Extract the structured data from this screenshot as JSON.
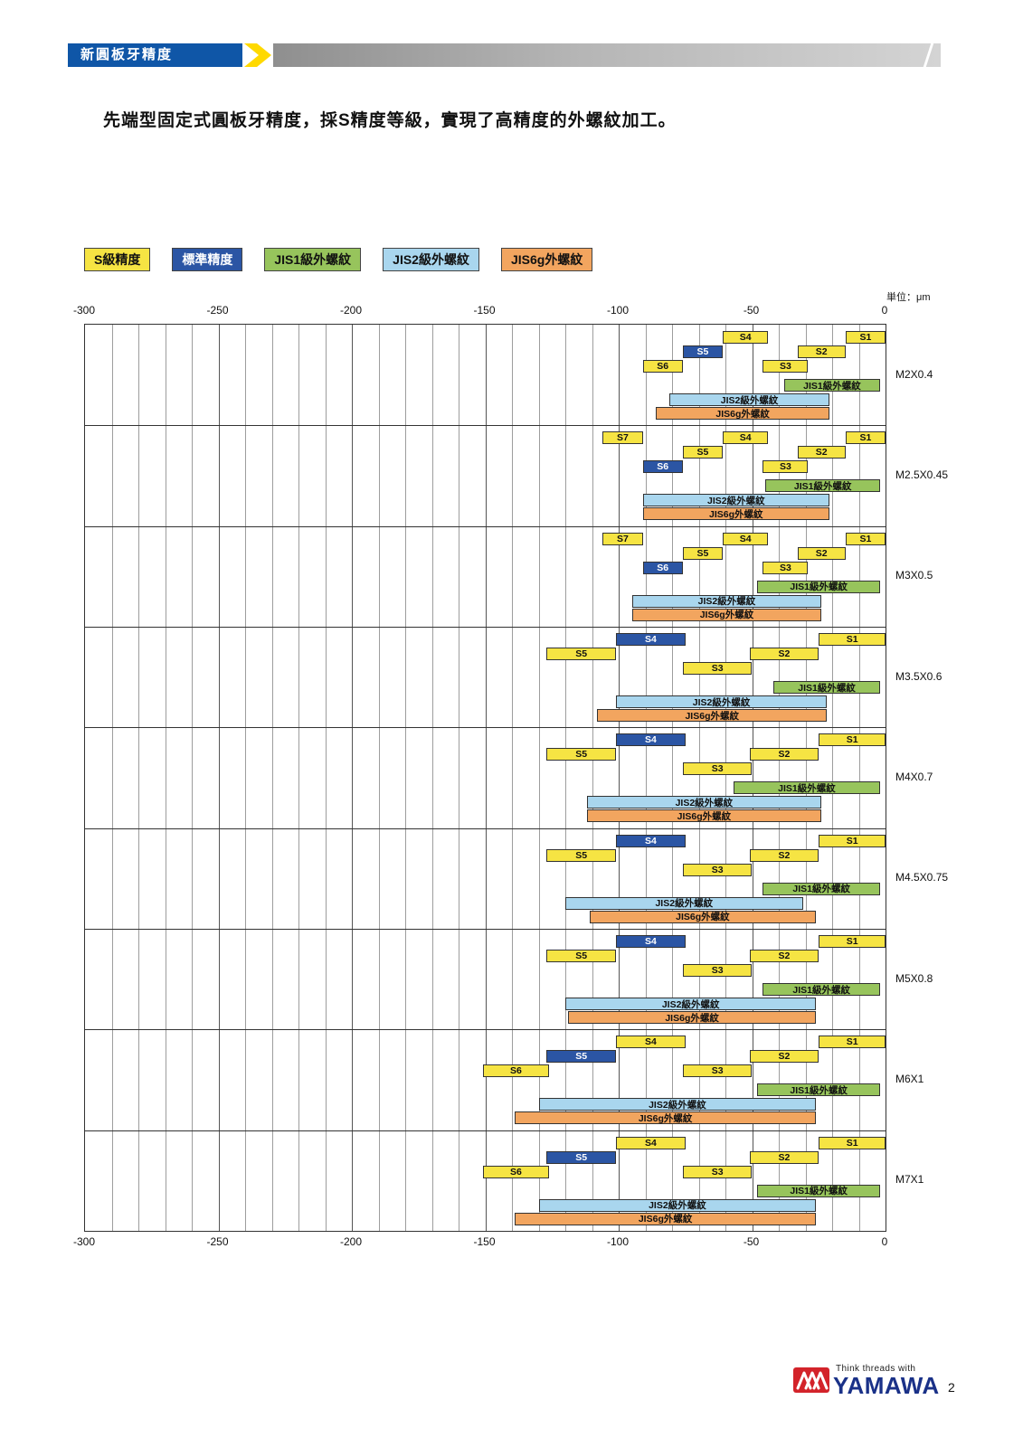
{
  "page": {
    "header": {
      "title": "新圓板牙精度"
    },
    "intro": "先端型固定式圓板牙精度，採S精度等級，實現了高精度的外螺紋加工。",
    "unit_label": "単位：μm",
    "footer": {
      "tagline": "Think threads with",
      "brand": "YAMAWA",
      "page_number": "2"
    }
  },
  "legend": [
    {
      "label": "S級精度",
      "type": "s"
    },
    {
      "label": "標準精度",
      "type": "std"
    },
    {
      "label": "JIS1級外螺紋",
      "type": "jis1"
    },
    {
      "label": "JIS2級外螺紋",
      "type": "jis2"
    },
    {
      "label": "JIS6g外螺紋",
      "type": "jis6g"
    }
  ],
  "colors": {
    "s": "#f6e443",
    "std": "#2b55a4",
    "jis1": "#97c45c",
    "jis2": "#a9d6ee",
    "jis6g": "#f2a55f",
    "header_blue": "#0f56a7",
    "chevron_yellow": "#ffd900"
  },
  "chart_data": {
    "type": "bar",
    "orientation": "horizontal-range",
    "title": "",
    "xlabel": "μm",
    "xlim": [
      -300,
      0
    ],
    "xticks": [
      -300,
      -250,
      -200,
      -150,
      -100,
      -50,
      0
    ],
    "minor_grid_step": 10,
    "grid": true,
    "rows": [
      {
        "label": "M2X0.4",
        "bars": [
          {
            "name": "S4",
            "start": -61,
            "end": -44,
            "type": "s",
            "line": 0
          },
          {
            "name": "S1",
            "start": -15,
            "end": 0,
            "type": "s",
            "line": 0
          },
          {
            "name": "S5",
            "start": -76,
            "end": -61,
            "type": "std",
            "line": 1
          },
          {
            "name": "S2",
            "start": -33,
            "end": -15,
            "type": "s",
            "line": 1
          },
          {
            "name": "S6",
            "start": -91,
            "end": -76,
            "type": "s",
            "line": 2
          },
          {
            "name": "S3",
            "start": -46,
            "end": -29,
            "type": "s",
            "line": 2
          },
          {
            "name": "JIS1級外螺紋",
            "start": -38,
            "end": -2,
            "type": "jis1",
            "line": 3
          },
          {
            "name": "JIS2級外螺紋",
            "start": -81,
            "end": -21,
            "type": "jis2",
            "line": 4
          },
          {
            "name": "JIS6g外螺紋",
            "start": -86,
            "end": -21,
            "type": "jis6g",
            "line": 5
          }
        ]
      },
      {
        "label": "M2.5X0.45",
        "bars": [
          {
            "name": "S7",
            "start": -106,
            "end": -91,
            "type": "s",
            "line": 0
          },
          {
            "name": "S4",
            "start": -61,
            "end": -44,
            "type": "s",
            "line": 0
          },
          {
            "name": "S1",
            "start": -15,
            "end": 0,
            "type": "s",
            "line": 0
          },
          {
            "name": "S5",
            "start": -76,
            "end": -61,
            "type": "s",
            "line": 1
          },
          {
            "name": "S2",
            "start": -33,
            "end": -15,
            "type": "s",
            "line": 1
          },
          {
            "name": "S6",
            "start": -91,
            "end": -76,
            "type": "std",
            "line": 2
          },
          {
            "name": "S3",
            "start": -46,
            "end": -29,
            "type": "s",
            "line": 2
          },
          {
            "name": "JIS1級外螺紋",
            "start": -45,
            "end": -2,
            "type": "jis1",
            "line": 3
          },
          {
            "name": "JIS2級外螺紋",
            "start": -91,
            "end": -21,
            "type": "jis2",
            "line": 4
          },
          {
            "name": "JIS6g外螺紋",
            "start": -91,
            "end": -21,
            "type": "jis6g",
            "line": 5
          }
        ]
      },
      {
        "label": "M3X0.5",
        "bars": [
          {
            "name": "S7",
            "start": -106,
            "end": -91,
            "type": "s",
            "line": 0
          },
          {
            "name": "S4",
            "start": -61,
            "end": -44,
            "type": "s",
            "line": 0
          },
          {
            "name": "S1",
            "start": -15,
            "end": 0,
            "type": "s",
            "line": 0
          },
          {
            "name": "S5",
            "start": -76,
            "end": -61,
            "type": "s",
            "line": 1
          },
          {
            "name": "S2",
            "start": -33,
            "end": -15,
            "type": "s",
            "line": 1
          },
          {
            "name": "S6",
            "start": -91,
            "end": -76,
            "type": "std",
            "line": 2
          },
          {
            "name": "S3",
            "start": -46,
            "end": -29,
            "type": "s",
            "line": 2
          },
          {
            "name": "JIS1級外螺紋",
            "start": -48,
            "end": -2,
            "type": "jis1",
            "line": 3
          },
          {
            "name": "JIS2級外螺紋",
            "start": -95,
            "end": -24,
            "type": "jis2",
            "line": 4
          },
          {
            "name": "JIS6g外螺紋",
            "start": -95,
            "end": -24,
            "type": "jis6g",
            "line": 5
          }
        ]
      },
      {
        "label": "M3.5X0.6",
        "bars": [
          {
            "name": "S4",
            "start": -101,
            "end": -75,
            "type": "std",
            "line": 0
          },
          {
            "name": "S1",
            "start": -25,
            "end": 0,
            "type": "s",
            "line": 0
          },
          {
            "name": "S5",
            "start": -127,
            "end": -101,
            "type": "s",
            "line": 1
          },
          {
            "name": "S2",
            "start": -51,
            "end": -25,
            "type": "s",
            "line": 1
          },
          {
            "name": "S3",
            "start": -76,
            "end": -50,
            "type": "s",
            "line": 2
          },
          {
            "name": "JIS1級外螺紋",
            "start": -42,
            "end": -2,
            "type": "jis1",
            "line": 3
          },
          {
            "name": "JIS2級外螺紋",
            "start": -101,
            "end": -22,
            "type": "jis2",
            "line": 4
          },
          {
            "name": "JIS6g外螺紋",
            "start": -108,
            "end": -22,
            "type": "jis6g",
            "line": 5
          }
        ]
      },
      {
        "label": "M4X0.7",
        "bars": [
          {
            "name": "S4",
            "start": -101,
            "end": -75,
            "type": "std",
            "line": 0
          },
          {
            "name": "S1",
            "start": -25,
            "end": 0,
            "type": "s",
            "line": 0
          },
          {
            "name": "S5",
            "start": -127,
            "end": -101,
            "type": "s",
            "line": 1
          },
          {
            "name": "S2",
            "start": -51,
            "end": -25,
            "type": "s",
            "line": 1
          },
          {
            "name": "S3",
            "start": -76,
            "end": -50,
            "type": "s",
            "line": 2
          },
          {
            "name": "JIS1級外螺紋",
            "start": -57,
            "end": -2,
            "type": "jis1",
            "line": 3
          },
          {
            "name": "JIS2級外螺紋",
            "start": -112,
            "end": -24,
            "type": "jis2",
            "line": 4
          },
          {
            "name": "JIS6g外螺紋",
            "start": -112,
            "end": -24,
            "type": "jis6g",
            "line": 5
          }
        ]
      },
      {
        "label": "M4.5X0.75",
        "bars": [
          {
            "name": "S4",
            "start": -101,
            "end": -75,
            "type": "std",
            "line": 0
          },
          {
            "name": "S1",
            "start": -25,
            "end": 0,
            "type": "s",
            "line": 0
          },
          {
            "name": "S5",
            "start": -127,
            "end": -101,
            "type": "s",
            "line": 1
          },
          {
            "name": "S2",
            "start": -51,
            "end": -25,
            "type": "s",
            "line": 1
          },
          {
            "name": "S3",
            "start": -76,
            "end": -50,
            "type": "s",
            "line": 2
          },
          {
            "name": "JIS1級外螺紋",
            "start": -46,
            "end": -2,
            "type": "jis1",
            "line": 3
          },
          {
            "name": "JIS2級外螺紋",
            "start": -120,
            "end": -31,
            "type": "jis2",
            "line": 4
          },
          {
            "name": "JIS6g外螺紋",
            "start": -111,
            "end": -26,
            "type": "jis6g",
            "line": 5
          }
        ]
      },
      {
        "label": "M5X0.8",
        "bars": [
          {
            "name": "S4",
            "start": -101,
            "end": -75,
            "type": "std",
            "line": 0
          },
          {
            "name": "S1",
            "start": -25,
            "end": 0,
            "type": "s",
            "line": 0
          },
          {
            "name": "S5",
            "start": -127,
            "end": -101,
            "type": "s",
            "line": 1
          },
          {
            "name": "S2",
            "start": -51,
            "end": -25,
            "type": "s",
            "line": 1
          },
          {
            "name": "S3",
            "start": -76,
            "end": -50,
            "type": "s",
            "line": 2
          },
          {
            "name": "JIS1級外螺紋",
            "start": -46,
            "end": -2,
            "type": "jis1",
            "line": 3
          },
          {
            "name": "JIS2級外螺紋",
            "start": -120,
            "end": -26,
            "type": "jis2",
            "line": 4
          },
          {
            "name": "JIS6g外螺紋",
            "start": -119,
            "end": -26,
            "type": "jis6g",
            "line": 5
          }
        ]
      },
      {
        "label": "M6X1",
        "bars": [
          {
            "name": "S4",
            "start": -101,
            "end": -75,
            "type": "s",
            "line": 0
          },
          {
            "name": "S1",
            "start": -25,
            "end": 0,
            "type": "s",
            "line": 0
          },
          {
            "name": "S5",
            "start": -127,
            "end": -101,
            "type": "std",
            "line": 1
          },
          {
            "name": "S2",
            "start": -51,
            "end": -25,
            "type": "s",
            "line": 1
          },
          {
            "name": "S6",
            "start": -151,
            "end": -126,
            "type": "s",
            "line": 2
          },
          {
            "name": "S3",
            "start": -76,
            "end": -50,
            "type": "s",
            "line": 2
          },
          {
            "name": "JIS1級外螺紋",
            "start": -48,
            "end": -2,
            "type": "jis1",
            "line": 3
          },
          {
            "name": "JIS2級外螺紋",
            "start": -130,
            "end": -26,
            "type": "jis2",
            "line": 4
          },
          {
            "name": "JIS6g外螺紋",
            "start": -139,
            "end": -26,
            "type": "jis6g",
            "line": 5
          }
        ]
      },
      {
        "label": "M7X1",
        "bars": [
          {
            "name": "S4",
            "start": -101,
            "end": -75,
            "type": "s",
            "line": 0
          },
          {
            "name": "S1",
            "start": -25,
            "end": 0,
            "type": "s",
            "line": 0
          },
          {
            "name": "S5",
            "start": -127,
            "end": -101,
            "type": "std",
            "line": 1
          },
          {
            "name": "S2",
            "start": -51,
            "end": -25,
            "type": "s",
            "line": 1
          },
          {
            "name": "S6",
            "start": -151,
            "end": -126,
            "type": "s",
            "line": 2
          },
          {
            "name": "S3",
            "start": -76,
            "end": -50,
            "type": "s",
            "line": 2
          },
          {
            "name": "JIS1級外螺紋",
            "start": -48,
            "end": -2,
            "type": "jis1",
            "line": 3
          },
          {
            "name": "JIS2級外螺紋",
            "start": -130,
            "end": -26,
            "type": "jis2",
            "line": 4
          },
          {
            "name": "JIS6g外螺紋",
            "start": -139,
            "end": -26,
            "type": "jis6g",
            "line": 5
          }
        ]
      }
    ]
  }
}
